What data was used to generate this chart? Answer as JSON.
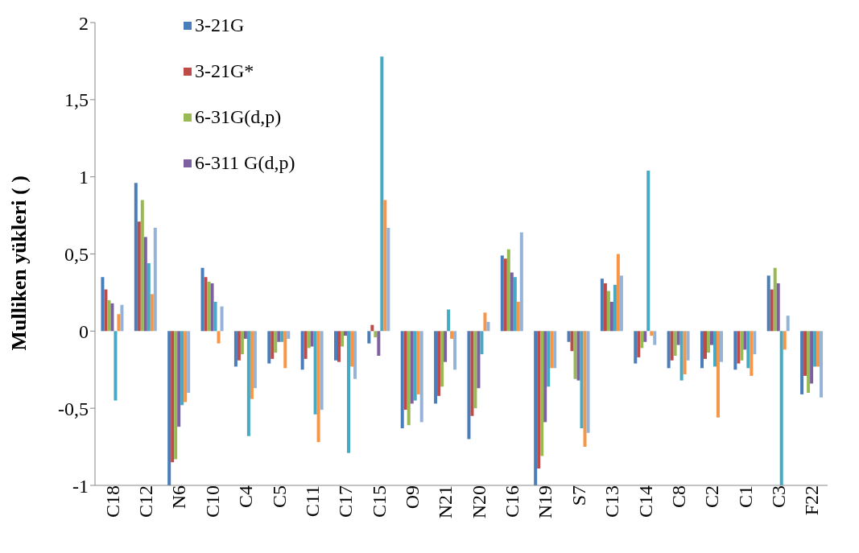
{
  "chart_data": {
    "type": "bar",
    "ylabel": "Mulliken yükleri ( )",
    "categories": [
      "C18",
      "C12",
      "N6",
      "C10",
      "C4",
      "C5",
      "C11",
      "C17",
      "C15",
      "O9",
      "N21",
      "N20",
      "C16",
      "N19",
      "S7",
      "C13",
      "C14",
      "C8",
      "C2",
      "C1",
      "C3",
      "F22"
    ],
    "series": [
      {
        "name": "3-21G",
        "color": "#4a7ebb",
        "values": [
          0.35,
          0.96,
          -1.0,
          0.41,
          -0.23,
          -0.21,
          -0.25,
          -0.19,
          -0.08,
          -0.63,
          -0.47,
          -0.7,
          0.49,
          -1.0,
          -0.07,
          0.34,
          -0.21,
          -0.24,
          -0.24,
          -0.25,
          0.36,
          -0.41
        ]
      },
      {
        "name": "3-21G*",
        "color": "#be4b48",
        "values": [
          0.27,
          0.71,
          -0.85,
          0.35,
          -0.19,
          -0.18,
          -0.18,
          -0.2,
          0.04,
          -0.51,
          -0.42,
          -0.55,
          0.47,
          -0.89,
          -0.13,
          0.31,
          -0.17,
          -0.19,
          -0.18,
          -0.21,
          0.27,
          -0.29
        ]
      },
      {
        "name": "6-31G(d,p)",
        "color": "#98b954",
        "values": [
          0.2,
          0.85,
          -0.83,
          0.32,
          -0.15,
          -0.14,
          -0.11,
          -0.1,
          -0.04,
          -0.61,
          -0.36,
          -0.5,
          0.53,
          -0.81,
          -0.31,
          0.26,
          -0.11,
          -0.16,
          -0.14,
          -0.19,
          0.41,
          -0.4
        ]
      },
      {
        "name": "6-311 G(d,p)",
        "color": "#7d60a0",
        "values": [
          0.18,
          0.61,
          -0.62,
          0.31,
          -0.05,
          -0.07,
          -0.1,
          -0.03,
          -0.16,
          -0.47,
          -0.2,
          -0.37,
          0.38,
          -0.59,
          -0.32,
          0.19,
          -0.07,
          -0.09,
          -0.09,
          -0.12,
          0.31,
          -0.34
        ]
      },
      {
        "color": "#46aac5",
        "values": [
          -0.45,
          0.44,
          -0.48,
          0.19,
          -0.68,
          -0.07,
          -0.54,
          -0.79,
          1.78,
          -0.45,
          0.14,
          -0.15,
          0.35,
          -0.36,
          -0.63,
          0.3,
          1.04,
          -0.32,
          -0.23,
          -0.24,
          -1.0,
          -0.23
        ]
      },
      {
        "color": "#f79646",
        "values": [
          0.11,
          0.24,
          -0.46,
          -0.08,
          -0.44,
          -0.24,
          -0.72,
          -0.23,
          0.85,
          -0.41,
          -0.05,
          0.12,
          0.19,
          -0.24,
          -0.75,
          0.5,
          -0.03,
          -0.28,
          -0.56,
          -0.29,
          -0.12,
          -0.23
        ]
      },
      {
        "color": "#95b3d7",
        "values": [
          0.17,
          0.67,
          -0.4,
          0.16,
          -0.37,
          -0.05,
          -0.51,
          -0.31,
          0.67,
          -0.59,
          -0.25,
          0.06,
          0.64,
          -0.24,
          -0.66,
          0.36,
          -0.09,
          -0.19,
          -0.2,
          -0.15,
          0.1,
          -0.43
        ]
      }
    ],
    "ylim": [
      -1,
      2
    ],
    "yticks": [
      -1,
      {
        "value": -0.5,
        "label": "-0,5"
      },
      0,
      {
        "value": 0.5,
        "label": "0,5"
      },
      1,
      {
        "value": 1.5,
        "label": "1,5"
      },
      2
    ],
    "grid": false,
    "legend": "top left"
  }
}
